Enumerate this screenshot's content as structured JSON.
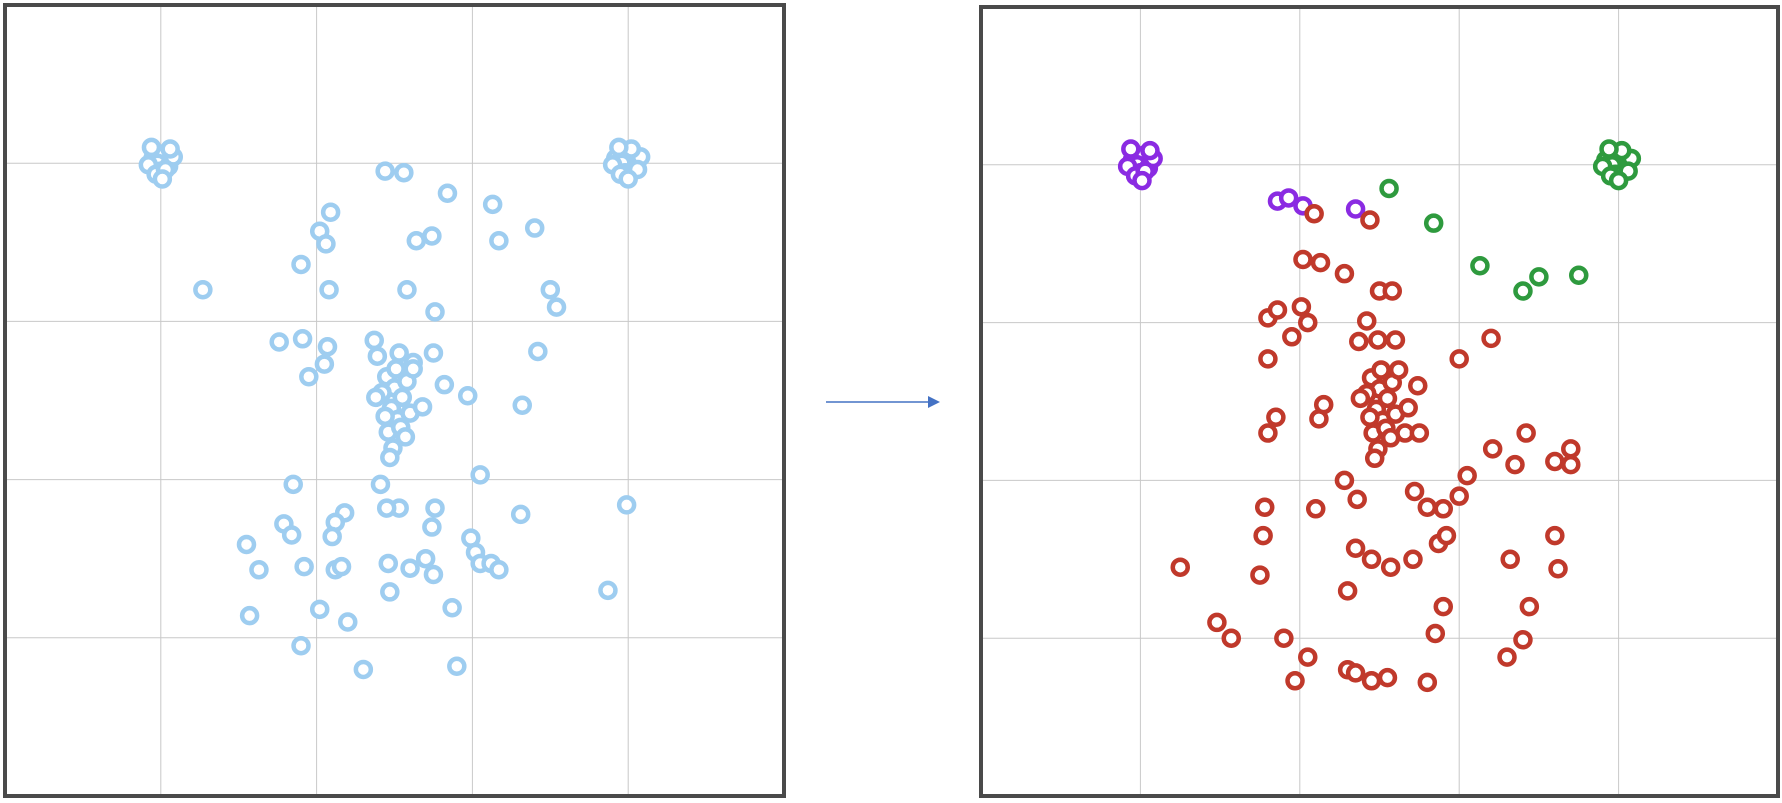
{
  "colors": {
    "frame": "#4a4a4a",
    "grid": "#c8c8c8",
    "arrow": "#4472c4",
    "unclustered": "#9ecdf0",
    "cluster_purple": "#8a2be2",
    "cluster_green": "#2e9a3e",
    "cluster_red": "#c0392b"
  },
  "icons": {
    "transition": "arrow-right-icon"
  },
  "chart_data": [
    {
      "type": "scatter",
      "title": "",
      "xlabel": "",
      "ylabel": "",
      "xlim": [
        0,
        5
      ],
      "ylim": [
        0,
        5
      ],
      "grid": true,
      "legend": "none",
      "series": [
        {
          "color": "#9ecdf0",
          "points": [
            [
              0.95,
              4.03
            ],
            [
              1.02,
              4.06
            ],
            [
              0.98,
              4.0
            ],
            [
              1.05,
              3.98
            ],
            [
              1.0,
              3.95
            ],
            [
              0.92,
              3.99
            ],
            [
              1.08,
              4.04
            ],
            [
              0.97,
              3.93
            ],
            [
              1.03,
              3.96
            ],
            [
              1.06,
              4.09
            ],
            [
              0.94,
              4.1
            ],
            [
              1.01,
              3.9
            ],
            [
              3.92,
              4.03
            ],
            [
              4.0,
              4.06
            ],
            [
              3.96,
              4.0
            ],
            [
              4.05,
              3.98
            ],
            [
              3.98,
              3.94
            ],
            [
              3.9,
              3.99
            ],
            [
              4.08,
              4.04
            ],
            [
              3.95,
              3.93
            ],
            [
              4.02,
              4.09
            ],
            [
              4.06,
              3.96
            ],
            [
              3.94,
              4.1
            ],
            [
              4.0,
              3.9
            ],
            [
              2.44,
              3.95
            ],
            [
              2.56,
              3.94
            ],
            [
              2.84,
              3.81
            ],
            [
              3.13,
              3.74
            ],
            [
              3.4,
              3.59
            ],
            [
              2.09,
              3.69
            ],
            [
              2.02,
              3.57
            ],
            [
              2.06,
              3.49
            ],
            [
              1.9,
              3.36
            ],
            [
              2.64,
              3.51
            ],
            [
              2.74,
              3.54
            ],
            [
              3.17,
              3.51
            ],
            [
              1.27,
              3.2
            ],
            [
              2.08,
              3.2
            ],
            [
              2.58,
              3.2
            ],
            [
              3.5,
              3.2
            ],
            [
              3.54,
              3.09
            ],
            [
              2.76,
              3.06
            ],
            [
              1.76,
              2.87
            ],
            [
              1.91,
              2.89
            ],
            [
              2.07,
              2.84
            ],
            [
              2.05,
              2.73
            ],
            [
              1.95,
              2.65
            ],
            [
              2.37,
              2.88
            ],
            [
              2.39,
              2.78
            ],
            [
              2.53,
              2.8
            ],
            [
              2.62,
              2.74
            ],
            [
              2.75,
              2.8
            ],
            [
              2.82,
              2.6
            ],
            [
              2.97,
              2.53
            ],
            [
              3.42,
              2.81
            ],
            [
              3.32,
              2.47
            ],
            [
              2.45,
              2.65
            ],
            [
              2.5,
              2.58
            ],
            [
              2.55,
              2.52
            ],
            [
              2.48,
              2.45
            ],
            [
              2.52,
              2.38
            ],
            [
              2.46,
              2.3
            ],
            [
              2.58,
              2.62
            ],
            [
              2.42,
              2.55
            ],
            [
              2.6,
              2.42
            ],
            [
              2.54,
              2.33
            ],
            [
              2.49,
              2.2
            ],
            [
              2.62,
              2.7
            ],
            [
              2.44,
              2.4
            ],
            [
              2.57,
              2.27
            ],
            [
              2.68,
              2.46
            ],
            [
              2.38,
              2.52
            ],
            [
              2.51,
              2.7
            ],
            [
              2.47,
              2.14
            ],
            [
              1.85,
              1.97
            ],
            [
              2.41,
              1.97
            ],
            [
              2.53,
              1.82
            ],
            [
              2.45,
              1.82
            ],
            [
              2.76,
              1.82
            ],
            [
              3.05,
              2.03
            ],
            [
              3.31,
              1.78
            ],
            [
              3.99,
              1.84
            ],
            [
              2.74,
              1.7
            ],
            [
              2.99,
              1.63
            ],
            [
              1.79,
              1.72
            ],
            [
              1.84,
              1.65
            ],
            [
              2.18,
              1.79
            ],
            [
              2.12,
              1.73
            ],
            [
              2.1,
              1.64
            ],
            [
              1.55,
              1.59
            ],
            [
              1.63,
              1.43
            ],
            [
              1.92,
              1.45
            ],
            [
              2.12,
              1.43
            ],
            [
              2.16,
              1.45
            ],
            [
              2.46,
              1.47
            ],
            [
              2.6,
              1.44
            ],
            [
              2.7,
              1.5
            ],
            [
              2.75,
              1.4
            ],
            [
              3.02,
              1.54
            ],
            [
              3.05,
              1.47
            ],
            [
              3.12,
              1.47
            ],
            [
              3.17,
              1.43
            ],
            [
              3.87,
              1.3
            ],
            [
              2.47,
              1.29
            ],
            [
              2.87,
              1.19
            ],
            [
              2.02,
              1.18
            ],
            [
              2.2,
              1.1
            ],
            [
              1.57,
              1.14
            ],
            [
              1.9,
              0.95
            ],
            [
              2.3,
              0.8
            ],
            [
              2.9,
              0.82
            ]
          ]
        }
      ]
    },
    {
      "type": "scatter",
      "title": "",
      "xlabel": "",
      "ylabel": "",
      "xlim": [
        0,
        5
      ],
      "ylim": [
        0,
        5
      ],
      "grid": true,
      "legend": "none",
      "series": [
        {
          "color": "#8a2be2",
          "points": [
            [
              0.95,
              4.03
            ],
            [
              1.02,
              4.06
            ],
            [
              0.98,
              4.0
            ],
            [
              1.05,
              3.98
            ],
            [
              1.0,
              3.95
            ],
            [
              0.92,
              3.99
            ],
            [
              1.08,
              4.04
            ],
            [
              0.97,
              3.93
            ],
            [
              1.03,
              3.96
            ],
            [
              1.06,
              4.09
            ],
            [
              0.94,
              4.1
            ],
            [
              1.01,
              3.9
            ],
            [
              1.86,
              3.77
            ],
            [
              1.93,
              3.79
            ],
            [
              2.02,
              3.74
            ],
            [
              2.35,
              3.72
            ]
          ]
        },
        {
          "color": "#2e9a3e",
          "points": [
            [
              3.92,
              4.03
            ],
            [
              4.0,
              4.06
            ],
            [
              3.96,
              4.0
            ],
            [
              4.05,
              3.98
            ],
            [
              3.98,
              3.94
            ],
            [
              3.9,
              3.99
            ],
            [
              4.08,
              4.04
            ],
            [
              3.95,
              3.93
            ],
            [
              4.02,
              4.09
            ],
            [
              4.06,
              3.96
            ],
            [
              3.94,
              4.1
            ],
            [
              4.0,
              3.9
            ],
            [
              2.56,
              3.85
            ],
            [
              2.84,
              3.63
            ],
            [
              3.13,
              3.36
            ],
            [
              3.4,
              3.2
            ],
            [
              3.5,
              3.29
            ],
            [
              3.75,
              3.3
            ]
          ]
        },
        {
          "color": "#c0392b",
          "points": [
            [
              2.44,
              3.65
            ],
            [
              2.09,
              3.69
            ],
            [
              2.02,
              3.4
            ],
            [
              2.13,
              3.38
            ],
            [
              2.28,
              3.31
            ],
            [
              2.5,
              3.2
            ],
            [
              2.58,
              3.2
            ],
            [
              1.8,
              3.03
            ],
            [
              1.86,
              3.08
            ],
            [
              2.01,
              3.1
            ],
            [
              2.05,
              3.0
            ],
            [
              2.42,
              3.01
            ],
            [
              1.95,
              2.91
            ],
            [
              2.37,
              2.88
            ],
            [
              2.49,
              2.89
            ],
            [
              2.6,
              2.89
            ],
            [
              3.2,
              2.9
            ],
            [
              1.8,
              2.77
            ],
            [
              3.0,
              2.77
            ],
            [
              2.45,
              2.65
            ],
            [
              2.5,
              2.58
            ],
            [
              2.55,
              2.52
            ],
            [
              2.48,
              2.45
            ],
            [
              2.52,
              2.38
            ],
            [
              2.46,
              2.3
            ],
            [
              2.58,
              2.62
            ],
            [
              2.42,
              2.55
            ],
            [
              2.6,
              2.42
            ],
            [
              2.54,
              2.33
            ],
            [
              2.49,
              2.2
            ],
            [
              2.62,
              2.7
            ],
            [
              2.44,
              2.4
            ],
            [
              2.57,
              2.27
            ],
            [
              2.68,
              2.46
            ],
            [
              2.38,
              2.52
            ],
            [
              2.51,
              2.7
            ],
            [
              2.47,
              2.14
            ],
            [
              2.74,
              2.6
            ],
            [
              1.85,
              2.4
            ],
            [
              1.8,
              2.3
            ],
            [
              2.12,
              2.39
            ],
            [
              2.15,
              2.48
            ],
            [
              2.66,
              2.3
            ],
            [
              2.75,
              2.3
            ],
            [
              3.21,
              2.2
            ],
            [
              3.42,
              2.3
            ],
            [
              3.35,
              2.1
            ],
            [
              3.6,
              2.12
            ],
            [
              3.7,
              2.1
            ],
            [
              2.72,
              1.93
            ],
            [
              3.05,
              2.03
            ],
            [
              1.78,
              1.83
            ],
            [
              2.28,
              2.0
            ],
            [
              2.1,
              1.82
            ],
            [
              2.36,
              1.88
            ],
            [
              2.8,
              1.83
            ],
            [
              2.9,
              1.82
            ],
            [
              3.0,
              1.9
            ],
            [
              1.77,
              1.65
            ],
            [
              1.75,
              1.4
            ],
            [
              1.25,
              1.45
            ],
            [
              2.35,
              1.57
            ],
            [
              2.45,
              1.5
            ],
            [
              2.57,
              1.45
            ],
            [
              2.71,
              1.5
            ],
            [
              2.87,
              1.6
            ],
            [
              2.92,
              1.65
            ],
            [
              3.32,
              1.5
            ],
            [
              1.48,
              1.1
            ],
            [
              1.57,
              1.0
            ],
            [
              2.9,
              1.2
            ],
            [
              3.44,
              1.2
            ],
            [
              1.9,
              1.0
            ],
            [
              2.05,
              0.88
            ],
            [
              2.3,
              0.8
            ],
            [
              2.3,
              1.3
            ],
            [
              2.85,
              1.03
            ],
            [
              3.3,
              0.88
            ],
            [
              3.4,
              0.99
            ],
            [
              2.55,
              0.75
            ],
            [
              2.8,
              0.72
            ],
            [
              2.45,
              0.73
            ],
            [
              2.35,
              0.78
            ],
            [
              1.97,
              0.73
            ],
            [
              3.7,
              2.2
            ],
            [
              3.6,
              1.65
            ],
            [
              3.62,
              1.44
            ]
          ]
        }
      ]
    }
  ]
}
